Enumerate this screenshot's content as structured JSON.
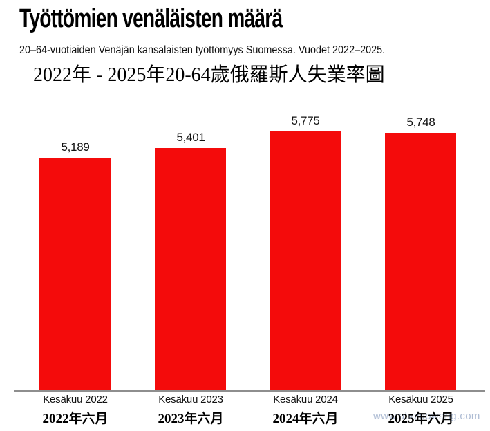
{
  "header": {
    "title": "Työttömien venäläisten määrä",
    "subtitle": "20–64-vuotiaiden Venäjän kansalaisten työttömyys Suomessa. Vuodet 2022–2025.",
    "subtitle_zh": "2022年 - 2025年20-64歲俄羅斯人失業率圖"
  },
  "chart_data": {
    "type": "bar",
    "title": "Työttömien venäläisten määrä",
    "subtitle": "20–64-vuotiaiden Venäjän kansalaisten työttömyys Suomessa. Vuodet 2022–2025.",
    "categories": [
      "Kesäkuu 2022",
      "Kesäkuu 2023",
      "Kesäkuu 2024",
      "Kesäkuu 2025"
    ],
    "categories_zh": [
      "2022年六月",
      "2023年六月",
      "2024年六月",
      "2025年六月"
    ],
    "values": [
      5189,
      5401,
      5775,
      5748
    ],
    "value_labels": [
      "5,189",
      "5,401",
      "5,775",
      "5,748"
    ],
    "bar_color": "#f40b0b",
    "axis_line_color": "#8e8e8e",
    "ylim": [
      0,
      6240
    ],
    "grid": false,
    "legend": false,
    "xlabel": "",
    "ylabel": ""
  },
  "watermark": {
    "text": "www.aboluowang.com",
    "color": "#9fb0cc"
  }
}
